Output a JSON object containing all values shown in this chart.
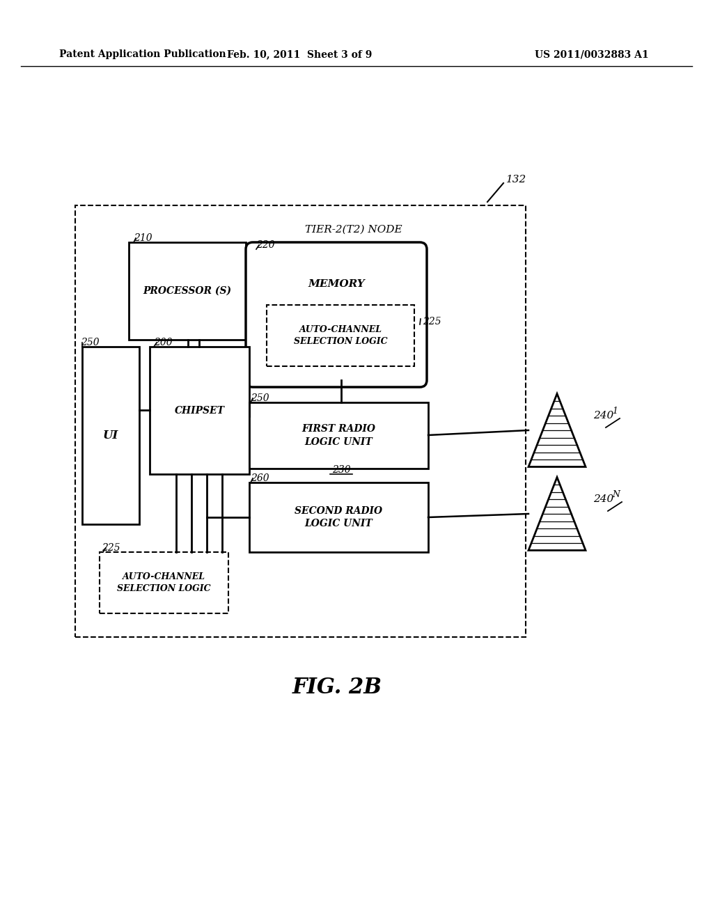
{
  "header_left": "Patent Application Publication",
  "header_center": "Feb. 10, 2011  Sheet 3 of 9",
  "header_right": "US 2011/0032883 A1",
  "fig_label": "FIG. 2B",
  "bg_color": "#ffffff",
  "line_color": "#000000",
  "label_132": "132",
  "label_210": "210",
  "label_220": "220",
  "label_225a": "225",
  "label_200": "200",
  "label_250a": "250",
  "label_250b": "250",
  "label_260": "260",
  "label_230": "230",
  "label_225b": "225",
  "label_240_1": "240",
  "label_240_N": "240",
  "text_tier": "TIER-2(T2) NODE",
  "text_processor": "PROCESSOR (S)",
  "text_memory": "MEMORY",
  "text_auto1": "AUTO-CHANNEL\nSELECTION LOGIC",
  "text_chipset": "CHIPSET",
  "text_ui": "UI",
  "text_first_radio": "FIRST RADIO\nLOGIC UNIT",
  "text_second_radio": "SECOND RADIO\nLOGIC UNIT",
  "text_auto2": "AUTO-CHANNEL\nSELECTION LOGIC"
}
